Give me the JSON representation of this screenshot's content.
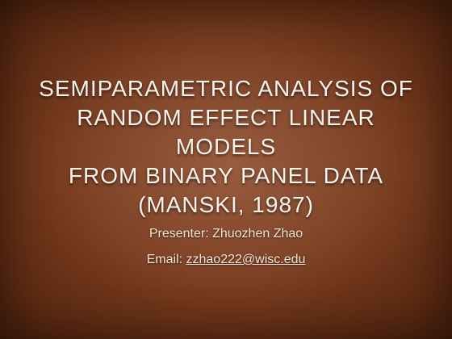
{
  "slide": {
    "title_lines": [
      "SEMIPARAMETRIC ANALYSIS OF",
      "RANDOM EFFECT LINEAR MODELS",
      "FROM BINARY PANEL DATA",
      "(MANSKI, 1987)"
    ],
    "presenter": "Presenter: Zhuozhen Zhao",
    "email_label": "Email: ",
    "email_address": "zzhao222@wisc.edu"
  },
  "colors": {
    "background": "#7a3c1f",
    "title_text": "#fbf3ec",
    "body_text": "#f1e3d8"
  }
}
